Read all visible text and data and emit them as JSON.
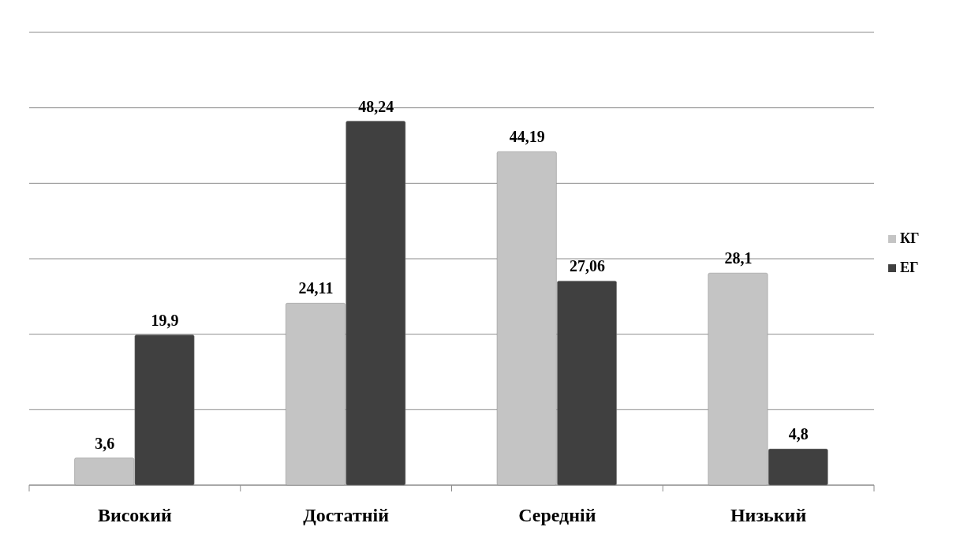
{
  "chart_data": {
    "type": "bar",
    "categories": [
      "Високий",
      "Достатній",
      "Середній",
      "Низький"
    ],
    "series": [
      {
        "name": "КГ",
        "color": "#c4c4c4",
        "values": [
          3.6,
          24.11,
          44.19,
          28.1
        ],
        "value_labels": [
          "3,6",
          "24,11",
          "44,19",
          "28,1"
        ]
      },
      {
        "name": "ЕГ",
        "color": "#404040",
        "values": [
          19.9,
          48.24,
          27.06,
          4.8
        ],
        "value_labels": [
          "19,9",
          "48,24",
          "27,06",
          "4,8"
        ]
      }
    ],
    "tick_labels": "x",
    "grid": "y",
    "legend": "right"
  }
}
